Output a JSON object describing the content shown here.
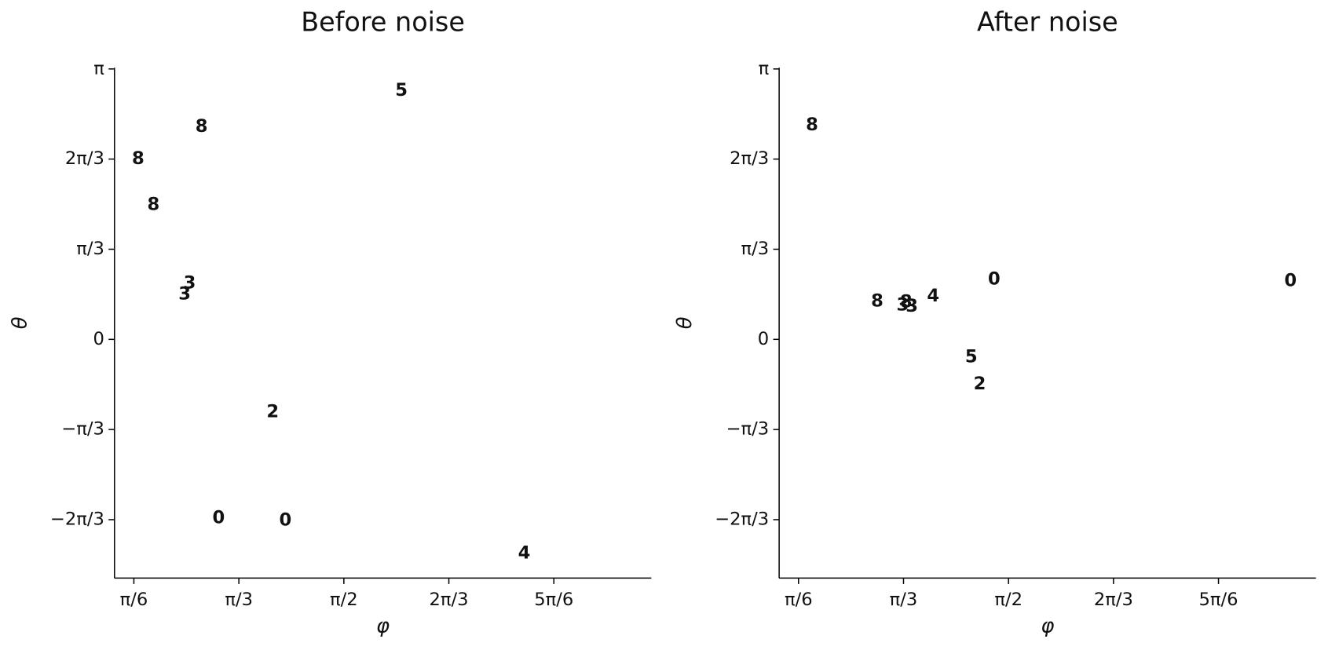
{
  "chart_data": [
    {
      "type": "scatter",
      "title": "Before noise",
      "xlabel": "φ",
      "ylabel": "θ",
      "xlim": [
        0.427,
        3.104
      ],
      "ylim": [
        -2.773,
        3.156
      ],
      "xticks": [
        {
          "value": 0.5236,
          "label": "π/6"
        },
        {
          "value": 1.0472,
          "label": "π/3"
        },
        {
          "value": 1.5708,
          "label": "π/2"
        },
        {
          "value": 2.0944,
          "label": "2π/3"
        },
        {
          "value": 2.618,
          "label": "5π/6"
        }
      ],
      "yticks": [
        {
          "value": -2.0944,
          "label": "−2π/3"
        },
        {
          "value": -1.0472,
          "label": "−π/3"
        },
        0,
        {
          "value": 1.0472,
          "label": "π/3"
        },
        {
          "value": 2.0944,
          "label": "2π/3"
        },
        {
          "value": 3.1416,
          "label": "π"
        }
      ],
      "x": [
        0.861,
        0.545,
        0.621,
        0.802,
        0.777,
        1.216,
        0.946,
        1.279,
        1.858,
        2.47
      ],
      "y": [
        2.468,
        2.094,
        1.563,
        0.649,
        0.521,
        -0.846,
        -2.075,
        -2.104,
        2.891,
        -2.488
      ],
      "labels": [
        "8",
        "8",
        "8",
        "3",
        "3",
        "2",
        "0",
        "0",
        "5",
        "4"
      ],
      "colors": [
        "#c9c64f",
        "#c9c64f",
        "#c9c64f",
        "#dc4a48",
        "#dc4a48",
        "#4cae4f",
        "#4a8fc7",
        "#4a8fc7",
        "#a37670",
        "#a57fcf"
      ]
    },
    {
      "type": "scatter",
      "title": "After noise",
      "xlabel": "φ",
      "ylabel": "θ",
      "xlim": [
        0.427,
        3.104
      ],
      "ylim": [
        -2.773,
        3.156
      ],
      "xticks": [
        {
          "value": 0.5236,
          "label": "π/6"
        },
        {
          "value": 1.0472,
          "label": "π/3"
        },
        {
          "value": 1.5708,
          "label": "π/2"
        },
        {
          "value": 2.0944,
          "label": "2π/3"
        },
        {
          "value": 2.618,
          "label": "5π/6"
        }
      ],
      "yticks": [
        {
          "value": -2.0944,
          "label": "−2π/3"
        },
        {
          "value": -1.0472,
          "label": "−π/3"
        },
        0,
        {
          "value": 1.0472,
          "label": "π/3"
        },
        {
          "value": 2.0944,
          "label": "2π/3"
        },
        {
          "value": 3.1416,
          "label": "π"
        }
      ],
      "x": [
        0.591,
        0.916,
        1.06,
        1.043,
        1.089,
        1.195,
        1.499,
        2.977,
        1.385,
        1.427
      ],
      "y": [
        2.488,
        0.442,
        0.433,
        0.393,
        0.383,
        0.501,
        0.698,
        0.678,
        -0.206,
        -0.521
      ],
      "labels": [
        "8",
        "8",
        "8",
        "3",
        "3",
        "4",
        "0",
        "0",
        "5",
        "2"
      ],
      "colors": [
        "#c9c64f",
        "#c9c64f",
        "#e0b050",
        "#dc4a48",
        "#dc4a48",
        "#a57fcf",
        "#4a8fc7",
        "#4a8fc7",
        "#a37670",
        "#4cae4f"
      ]
    }
  ]
}
